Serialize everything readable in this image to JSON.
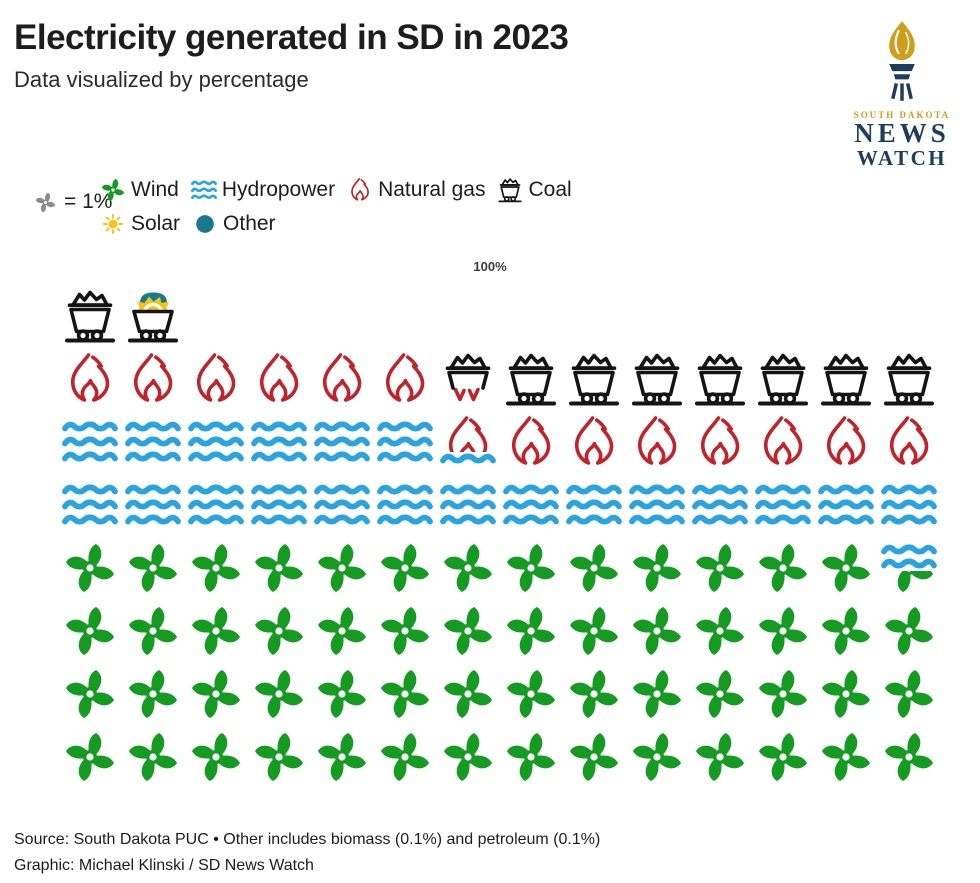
{
  "header": {
    "title": "Electricity generated in SD in 2023",
    "subtitle": "Data visualized by percentage"
  },
  "logo": {
    "region": "SOUTH DAKOTA",
    "name_line1": "NEWS",
    "name_line2": "WATCH"
  },
  "legend": {
    "unit_label": "= 1%",
    "unit_icon": "pinwheel-icon",
    "items": [
      {
        "name": "Wind",
        "icon": "pinwheel",
        "line": 1
      },
      {
        "name": "Hydropower",
        "icon": "waves",
        "line": 1
      },
      {
        "name": "Natural gas",
        "icon": "flame",
        "line": 1
      },
      {
        "name": "Coal",
        "icon": "cart",
        "line": 1
      },
      {
        "name": "Solar",
        "icon": "sun",
        "line": 2
      },
      {
        "name": "Other",
        "icon": "dot",
        "line": 2
      }
    ]
  },
  "colors": {
    "wind": "#169b22",
    "hydro": "#29a4e0",
    "gas": "#c1232b",
    "coal": "#141414",
    "solar": "#f6c21a",
    "other": "#17798c",
    "unit_icon": "#8c8c8c",
    "logo_navy": "#1d3c5e",
    "logo_gold": "#cc9f1e"
  },
  "chart_data": {
    "type": "pictogram",
    "title": "Electricity generated in SD in 2023",
    "unit": "1 icon = 1%",
    "total_label": "100%",
    "grid": {
      "columns": 14,
      "icons_total": 100
    },
    "series": [
      {
        "name": "Wind",
        "percent": 55.4
      },
      {
        "name": "Hydropower",
        "percent": 20.9
      },
      {
        "name": "Natural gas",
        "percent": 13.5
      },
      {
        "name": "Coal",
        "percent": 9.6
      },
      {
        "name": "Solar",
        "percent": 0.4
      },
      {
        "name": "Other",
        "percent": 0.2
      }
    ],
    "pictogram_rows": [
      [
        {
          "type": "cart",
          "count": 1
        },
        {
          "type": "cart_solar_other",
          "count": 1
        }
      ],
      [
        {
          "type": "flame",
          "count": 6
        },
        {
          "type": "cart_over_flame",
          "count": 1
        },
        {
          "type": "cart",
          "count": 7
        }
      ],
      [
        {
          "type": "waves",
          "count": 6
        },
        {
          "type": "flame_over_waves",
          "count": 1
        },
        {
          "type": "flame",
          "count": 7
        }
      ],
      [
        {
          "type": "waves",
          "count": 14
        }
      ],
      [
        {
          "type": "pinwheel",
          "count": 13
        },
        {
          "type": "waves_over_pinwheel",
          "count": 1
        }
      ],
      [
        {
          "type": "pinwheel",
          "count": 14
        }
      ],
      [
        {
          "type": "pinwheel",
          "count": 14
        }
      ],
      [
        {
          "type": "pinwheel",
          "count": 14
        }
      ]
    ]
  },
  "footer": {
    "source": "Source: South Dakota PUC • Other includes biomass (0.1%) and petroleum (0.1%)",
    "credit": "Graphic: Michael Klinski / SD News Watch"
  }
}
